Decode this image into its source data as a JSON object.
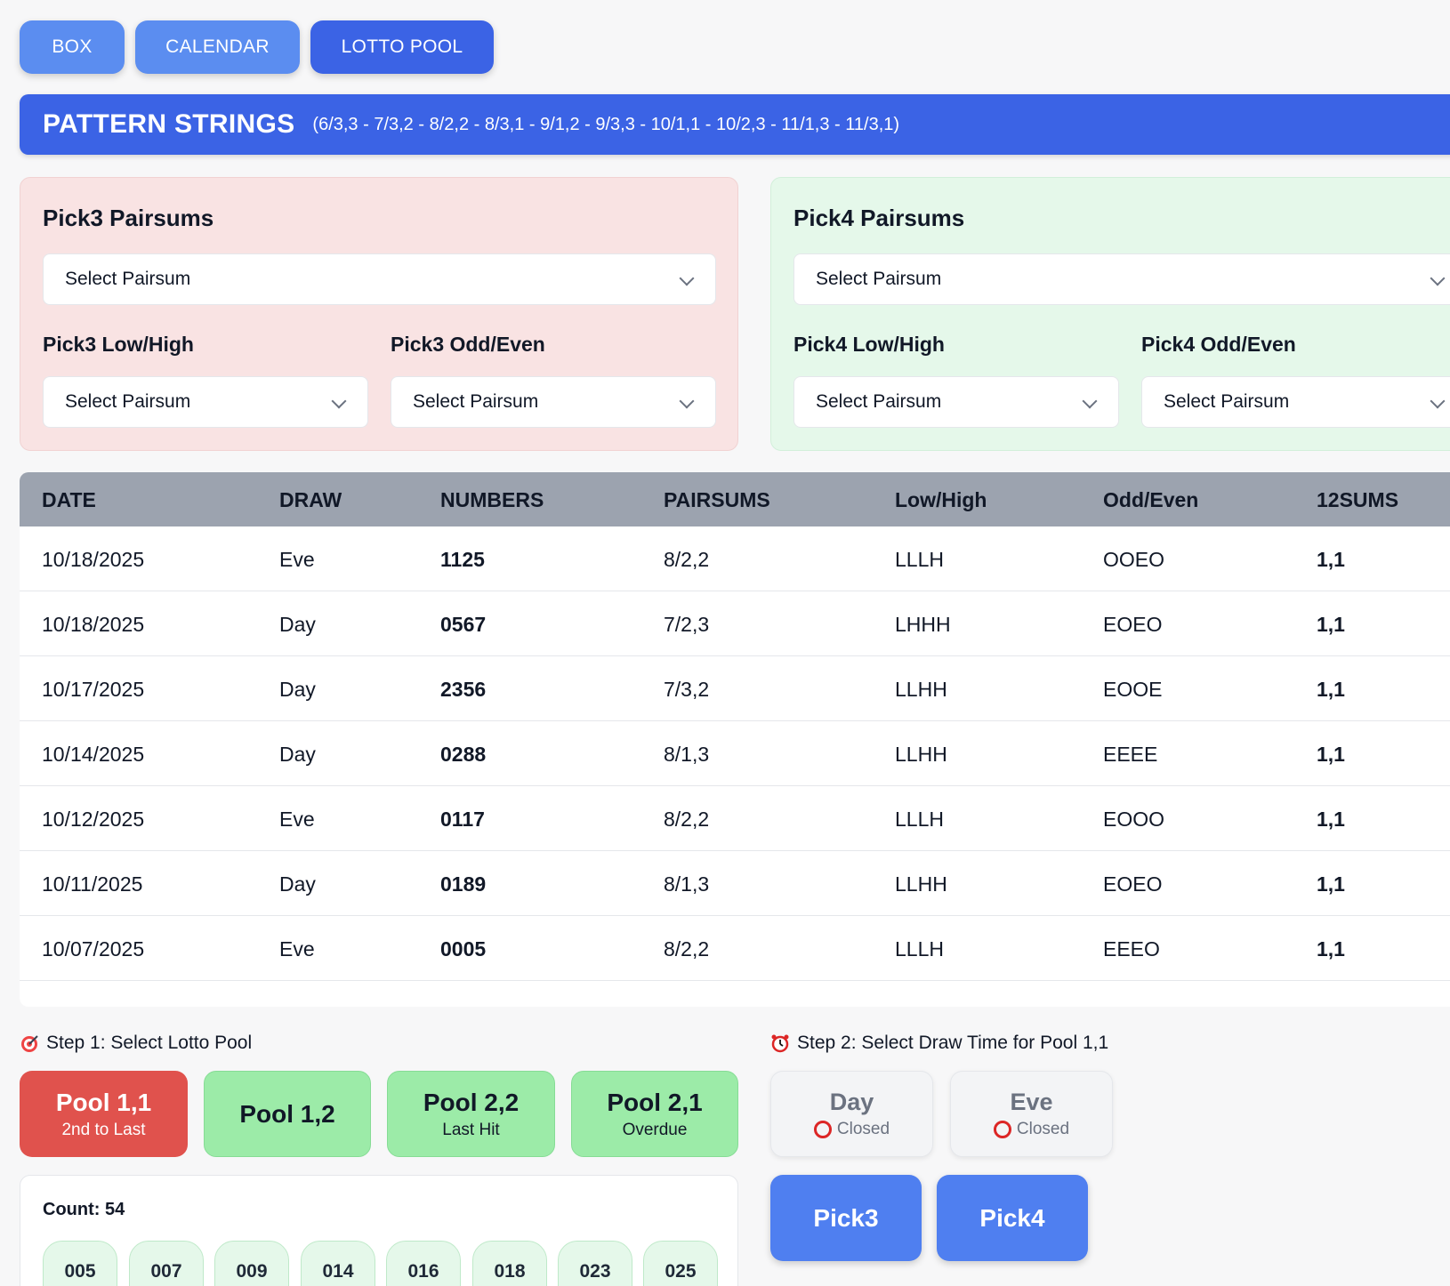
{
  "tabs": [
    {
      "label": "BOX"
    },
    {
      "label": "CALENDAR"
    },
    {
      "label": "LOTTO POOL"
    }
  ],
  "banner": {
    "title": "PATTERN STRINGS",
    "patterns": "(6/3,3 - 7/3,2 - 8/2,2 - 8/3,1 - 9/1,2 - 9/3,3 - 10/1,1 - 10/2,3 - 11/1,3 - 11/3,1)"
  },
  "pick3": {
    "title": "Pick3 Pairsums",
    "pairsum_select": "Select Pairsum",
    "lowhigh_label": "Pick3 Low/High",
    "lowhigh_select": "Select Pairsum",
    "oddeven_label": "Pick3 Odd/Even",
    "oddeven_select": "Select Pairsum"
  },
  "pick4": {
    "title": "Pick4 Pairsums",
    "pairsum_select": "Select Pairsum",
    "lowhigh_label": "Pick4 Low/High",
    "lowhigh_select": "Select Pairsum",
    "oddeven_label": "Pick4 Odd/Even",
    "oddeven_select": "Select Pairsum"
  },
  "table": {
    "headers": [
      "DATE",
      "DRAW",
      "NUMBERS",
      "PAIRSUMS",
      "Low/High",
      "Odd/Even",
      "12SUMS"
    ],
    "rows": [
      [
        "10/18/2025",
        "Eve",
        "1125",
        "8/2,2",
        "LLLH",
        "OOEO",
        "1,1"
      ],
      [
        "10/18/2025",
        "Day",
        "0567",
        "7/2,3",
        "LHHH",
        "EOEO",
        "1,1"
      ],
      [
        "10/17/2025",
        "Day",
        "2356",
        "7/3,2",
        "LLHH",
        "EOOE",
        "1,1"
      ],
      [
        "10/14/2025",
        "Day",
        "0288",
        "8/1,3",
        "LLHH",
        "EEEE",
        "1,1"
      ],
      [
        "10/12/2025",
        "Eve",
        "0117",
        "8/2,2",
        "LLLH",
        "EOOO",
        "1,1"
      ],
      [
        "10/11/2025",
        "Day",
        "0189",
        "8/1,3",
        "LLHH",
        "EOEO",
        "1,1"
      ],
      [
        "10/07/2025",
        "Eve",
        "0005",
        "8/2,2",
        "LLLH",
        "EEEO",
        "1,1"
      ]
    ]
  },
  "step1": {
    "label": "Step 1: Select Lotto Pool",
    "icon": "target-icon",
    "pools": [
      {
        "title": "Pool 1,1",
        "sub": "2nd to Last"
      },
      {
        "title": "Pool 1,2",
        "sub": ""
      },
      {
        "title": "Pool 2,2",
        "sub": "Last Hit"
      },
      {
        "title": "Pool 2,1",
        "sub": "Overdue"
      }
    ],
    "count_label": "Count: 54",
    "chips": [
      "005",
      "007",
      "009",
      "014",
      "016",
      "018",
      "023",
      "025"
    ]
  },
  "step2": {
    "label": "Step 2: Select Draw Time for Pool 1,1",
    "icon": "alarm-clock-icon",
    "times": [
      {
        "title": "Day",
        "status": "Closed"
      },
      {
        "title": "Eve",
        "status": "Closed"
      }
    ],
    "games": [
      "Pick3",
      "Pick4"
    ]
  },
  "colors": {
    "accent": "#3b63e5",
    "tab_light": "#5b8df0",
    "pool_selected": "#e0524d",
    "pool": "#9ceba8",
    "closed_ring": "#dc2626"
  }
}
